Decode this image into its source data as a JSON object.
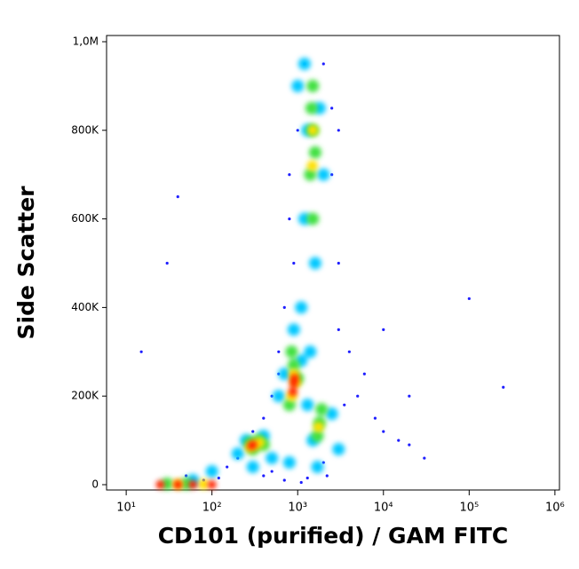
{
  "chart_data": {
    "type": "scatter",
    "x_label": "CD101 (purified) / GAM FITC",
    "y_label": "Side Scatter",
    "xscale": "log",
    "xlim": [
      5.9,
      1130000
    ],
    "ylim": [
      -12000,
      1014000
    ],
    "xticks": [
      {
        "value": 10,
        "label": "10¹"
      },
      {
        "value": 100,
        "label": "10²"
      },
      {
        "value": 1000,
        "label": "10³"
      },
      {
        "value": 10000,
        "label": "10⁴"
      },
      {
        "value": 100000,
        "label": "10⁵"
      },
      {
        "value": 1000000,
        "label": "10⁶"
      }
    ],
    "yticks": [
      0,
      {
        "value": 200000,
        "label": "200K"
      },
      {
        "value": 400000,
        "label": "400K"
      },
      {
        "value": 600000,
        "label": "600K"
      },
      {
        "value": 800000,
        "label": "800K"
      },
      {
        "value": 1000000,
        "label": "1,0M"
      }
    ],
    "series": [
      {
        "color": "#1f1fff",
        "x": [
          150,
          200,
          300,
          400,
          500,
          600,
          700,
          800,
          1000,
          1200,
          2000,
          2500,
          3000,
          4000,
          5000,
          8000,
          10000,
          15000,
          20000,
          30000,
          500,
          700,
          1100,
          2200,
          3000,
          600,
          900,
          2500,
          3500,
          50,
          80,
          120,
          20000,
          10000,
          6000,
          400,
          1300,
          2000,
          800,
          15,
          30,
          250000,
          100000,
          40,
          3000
        ],
        "y": [
          40000,
          60000,
          120000,
          150000,
          200000,
          300000,
          400000,
          600000,
          800000,
          950000,
          950000,
          700000,
          500000,
          300000,
          200000,
          150000,
          120000,
          100000,
          90000,
          60000,
          30000,
          10000,
          5000,
          20000,
          350000,
          250000,
          500000,
          850000,
          180000,
          20000,
          10000,
          15000,
          200000,
          350000,
          250000,
          20000,
          15000,
          50000,
          700000,
          300000,
          500000,
          220000,
          420000,
          650000,
          800000
        ]
      },
      {
        "color": "#00c8ff",
        "x": [
          1000,
          1300,
          1800,
          1200,
          2000,
          1100,
          1600,
          1400,
          700,
          1300,
          600,
          1100,
          200,
          400,
          500,
          250,
          1500,
          2500,
          3000,
          100,
          60,
          300,
          800,
          1700,
          900,
          1200
        ],
        "y": [
          900000,
          800000,
          850000,
          600000,
          700000,
          400000,
          500000,
          300000,
          250000,
          180000,
          200000,
          280000,
          70000,
          110000,
          60000,
          100000,
          100000,
          160000,
          80000,
          30000,
          10000,
          40000,
          50000,
          40000,
          350000,
          950000
        ]
      },
      {
        "color": "#40e040",
        "x": [
          1500,
          1500,
          1400,
          1600,
          1500,
          1450,
          900,
          800,
          1000,
          850,
          350,
          300,
          280,
          400,
          1800,
          1700,
          1900,
          30,
          50
        ],
        "y": [
          900000,
          800000,
          700000,
          750000,
          600000,
          850000,
          270000,
          180000,
          240000,
          300000,
          100000,
          80000,
          95000,
          90000,
          140000,
          110000,
          170000,
          2000,
          2000
        ]
      },
      {
        "color": "#ffe000",
        "x": [
          1500,
          1480,
          900,
          850,
          950,
          320,
          280,
          360,
          1750,
          40,
          80
        ],
        "y": [
          800000,
          720000,
          250000,
          200000,
          230000,
          90000,
          85000,
          95000,
          130000,
          1000,
          1000
        ]
      },
      {
        "color": "#ff2000",
        "x": [
          900,
          880,
          920,
          300,
          290,
          25,
          40,
          60,
          100
        ],
        "y": [
          230000,
          210000,
          240000,
          90000,
          88000,
          0,
          0,
          0,
          0
        ]
      }
    ]
  }
}
